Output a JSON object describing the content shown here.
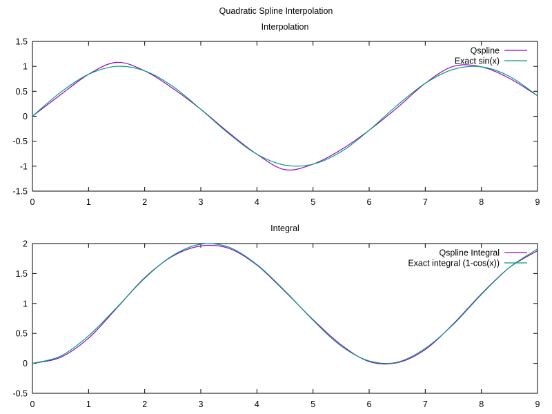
{
  "title": "Quadratic Spline Interpolation",
  "colors": {
    "qspline": "#9400d3",
    "exact": "#009e73"
  },
  "chart_data": [
    {
      "type": "line",
      "title": "Interpolation",
      "xlim": [
        0,
        9
      ],
      "ylim": [
        -1.5,
        1.5
      ],
      "x_ticks": [
        0,
        1,
        2,
        3,
        4,
        5,
        6,
        7,
        8,
        9
      ],
      "y_ticks": [
        -1.5,
        -1,
        -0.5,
        0,
        0.5,
        1,
        1.5
      ],
      "x_tick_labels": [
        "0",
        "1",
        "2",
        "3",
        "4",
        "5",
        "6",
        "7",
        "8",
        "9"
      ],
      "y_tick_labels": [
        "-1.5",
        "-1",
        "-0.5",
        "0",
        "0.5",
        "1",
        "1.5"
      ],
      "grid": false,
      "legend": "top-right",
      "x": [
        0,
        0.5,
        1,
        1.5,
        2,
        2.5,
        3,
        3.5,
        4,
        4.5,
        5,
        5.5,
        6,
        6.5,
        7,
        7.5,
        8,
        8.5,
        9
      ],
      "series": [
        {
          "name": "Qspline",
          "color": "#9400d3",
          "values": [
            0,
            0.43,
            0.84,
            1.08,
            0.91,
            0.56,
            0.14,
            -0.33,
            -0.76,
            -1.07,
            -0.96,
            -0.67,
            -0.28,
            0.17,
            0.66,
            1.0,
            0.99,
            0.76,
            0.41
          ]
        },
        {
          "name": "Exact sin(x)",
          "color": "#009e73",
          "values": [
            0,
            0.48,
            0.84,
            1.0,
            0.91,
            0.6,
            0.14,
            -0.35,
            -0.76,
            -0.98,
            -0.96,
            -0.71,
            -0.28,
            0.22,
            0.66,
            0.94,
            0.99,
            0.8,
            0.41
          ]
        }
      ]
    },
    {
      "type": "line",
      "title": "Integral",
      "xlim": [
        0,
        9
      ],
      "ylim": [
        -0.5,
        2
      ],
      "x_ticks": [
        0,
        1,
        2,
        3,
        4,
        5,
        6,
        7,
        8,
        9
      ],
      "y_ticks": [
        -0.5,
        0,
        0.5,
        1,
        1.5,
        2
      ],
      "x_tick_labels": [
        "0",
        "1",
        "2",
        "3",
        "4",
        "5",
        "6",
        "7",
        "8",
        "9"
      ],
      "y_tick_labels": [
        "-0.5",
        "0",
        "0.5",
        "1",
        "1.5",
        "2"
      ],
      "grid": false,
      "legend": "top-right",
      "x": [
        0,
        0.5,
        1,
        1.5,
        2,
        2.5,
        3,
        3.5,
        4,
        4.5,
        5,
        5.5,
        6,
        6.5,
        7,
        7.5,
        8,
        8.5,
        9
      ],
      "series": [
        {
          "name": "Qspline Integral",
          "color": "#9400d3",
          "values": [
            0,
            0.1,
            0.42,
            0.92,
            1.43,
            1.79,
            1.96,
            1.92,
            1.64,
            1.2,
            0.73,
            0.31,
            0.03,
            0.01,
            0.23,
            0.66,
            1.16,
            1.6,
            1.88
          ]
        },
        {
          "name": "Exact integral (1-cos(x))",
          "color": "#009e73",
          "values": [
            0,
            0.12,
            0.46,
            0.93,
            1.42,
            1.8,
            1.99,
            1.94,
            1.65,
            1.21,
            0.72,
            0.29,
            0.04,
            0.02,
            0.25,
            0.65,
            1.15,
            1.6,
            1.91
          ]
        }
      ]
    }
  ]
}
